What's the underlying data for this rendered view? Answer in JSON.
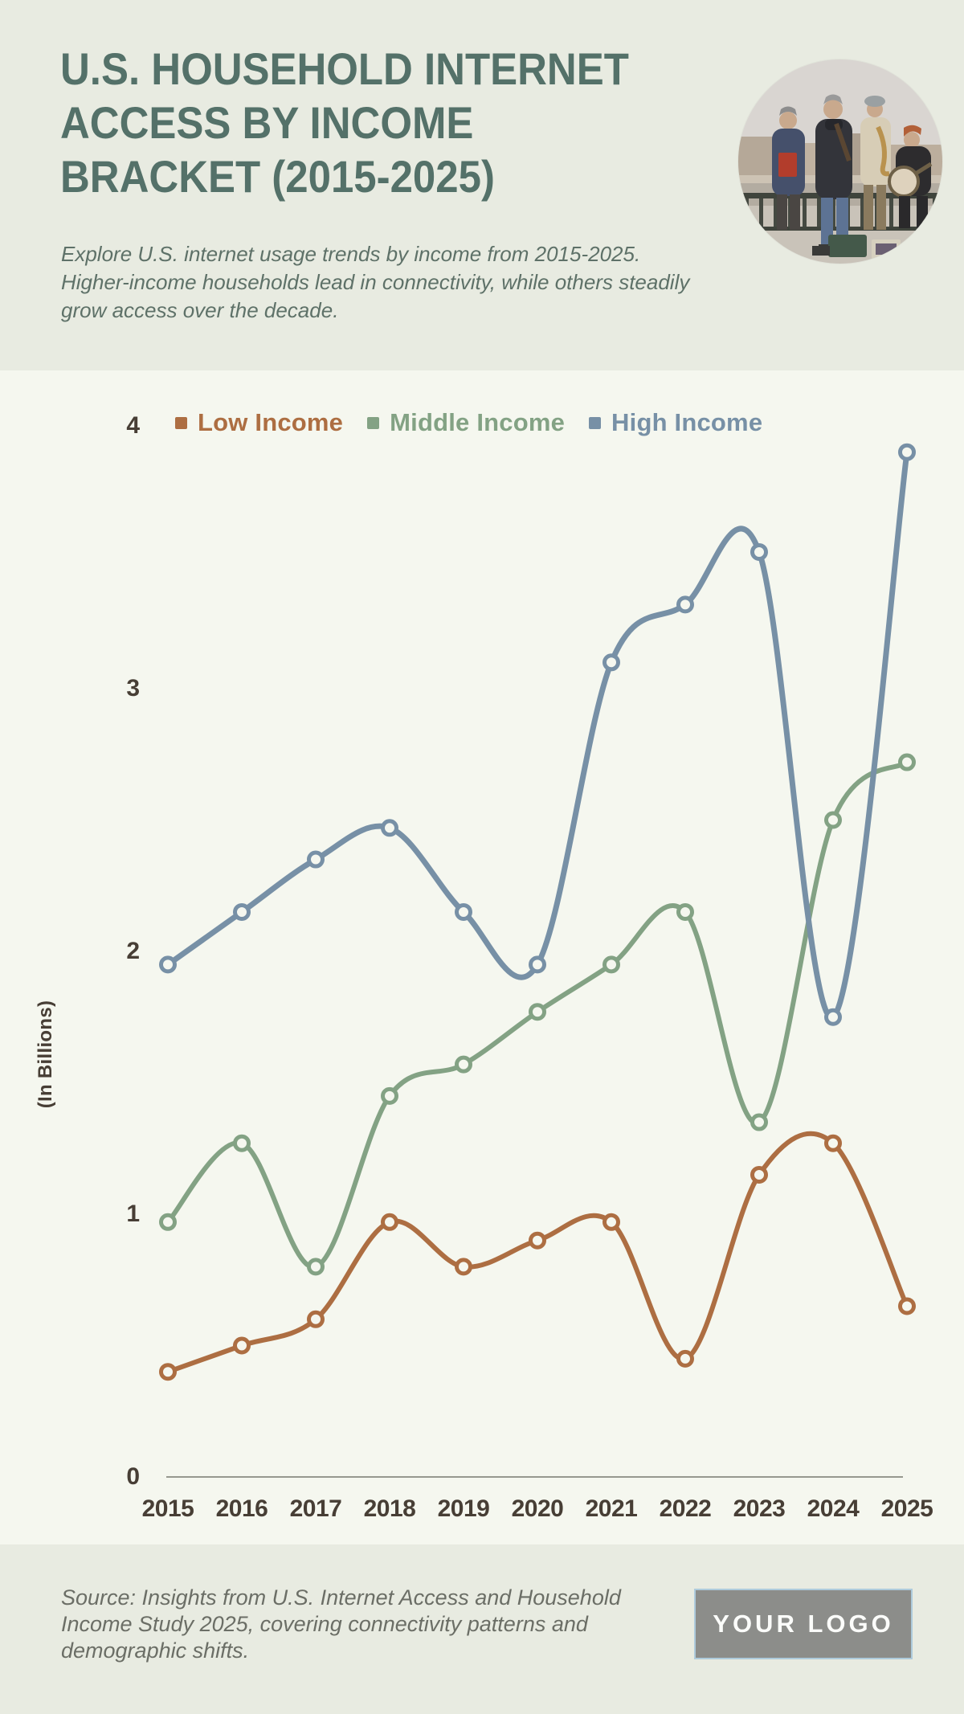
{
  "header": {
    "title_lines": [
      "U.S. HOUSEHOLD INTERNET",
      "ACCESS BY INCOME",
      "BRACKET (2015-2025)"
    ],
    "subtitle_lines": [
      "Explore U.S. internet usage trends by income from 2015-2025.",
      "Higher-income households lead in connectivity, while others steadily",
      "grow access over the decade."
    ]
  },
  "chart_data": {
    "type": "line",
    "title": "U.S. HOUSEHOLD INTERNET ACCESS BY INCOME BRACKET (2015-2025)",
    "categories": [
      "2015",
      "2016",
      "2017",
      "2018",
      "2019",
      "2020",
      "2021",
      "2022",
      "2023",
      "2024",
      "2025"
    ],
    "series": [
      {
        "name": "Low Income",
        "color": "#AD6E42",
        "values": [
          0.4,
          0.5,
          0.6,
          0.97,
          0.8,
          0.9,
          0.97,
          0.45,
          1.15,
          1.27,
          0.65
        ]
      },
      {
        "name": "Middle Income",
        "color": "#83A284",
        "values": [
          0.97,
          1.27,
          0.8,
          1.45,
          1.57,
          1.77,
          1.95,
          2.15,
          1.35,
          2.5,
          2.72
        ]
      },
      {
        "name": "High Income",
        "color": "#7790A6",
        "values": [
          1.95,
          2.15,
          2.35,
          2.47,
          2.15,
          1.95,
          3.1,
          3.32,
          3.52,
          1.75,
          3.9
        ]
      }
    ],
    "xlabel": "",
    "ylabel": "(In Billions)",
    "yticks": [
      0,
      1,
      2,
      3,
      4
    ],
    "ylim": [
      0,
      4
    ],
    "grid": false,
    "legend_position": "top",
    "marker": "open-circle",
    "smooth": true
  },
  "footer": {
    "source_lines": [
      "Source: Insights from U.S. Internet Access and Household",
      "Income Study 2025, covering connectivity patterns and",
      "demographic shifts."
    ],
    "logo_text": "YOUR LOGO"
  },
  "colors": {
    "header_bg": "#E8EBE1",
    "chart_bg": "#F5F7EF",
    "footer_bg": "#E8EBE1",
    "title_text": "#547169",
    "subtitle_text": "#5E7168",
    "axis_text": "#473E35",
    "axis_line": "#96988F",
    "source_text": "#6B6E66",
    "logo_bg": "#8C8D8A",
    "logo_border": "#AECBDC",
    "logo_text_color": "#FBFCFA"
  }
}
